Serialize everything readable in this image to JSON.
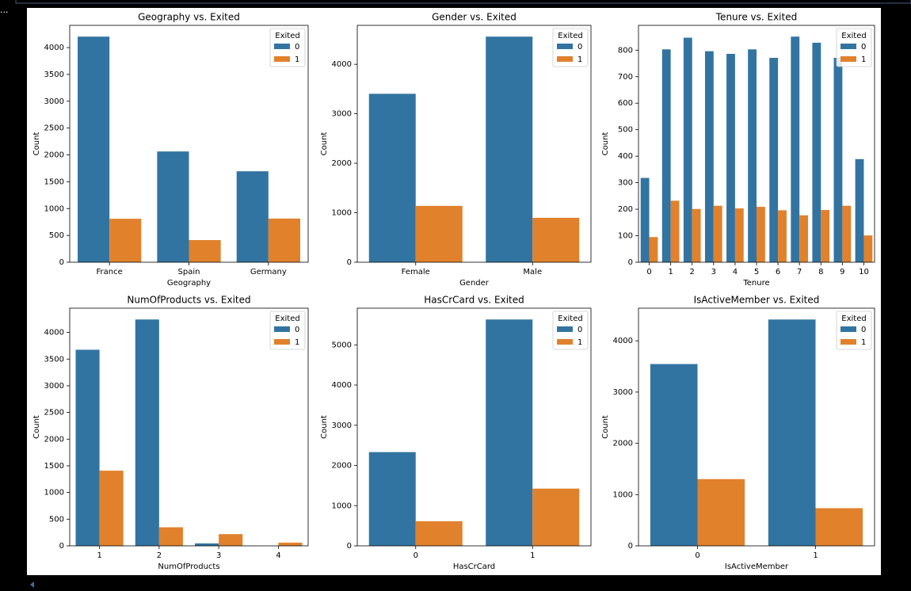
{
  "toolbar": {
    "ellipsis": "..."
  },
  "chart_data": [
    {
      "type": "bar",
      "title": "Geography vs. Exited",
      "xlabel": "Geography",
      "ylabel": "Count",
      "legend_title": "Exited",
      "legend": "upper right",
      "categories": [
        "France",
        "Spain",
        "Germany"
      ],
      "series": [
        {
          "name": "0",
          "color": "#3274a1",
          "values": [
            4204,
            2064,
            1695
          ]
        },
        {
          "name": "1",
          "color": "#e1812c",
          "values": [
            810,
            413,
            814
          ]
        }
      ],
      "ylim": [
        0,
        4414
      ],
      "yticks": [
        0,
        500,
        1000,
        1500,
        2000,
        2500,
        3000,
        3500,
        4000
      ]
    },
    {
      "type": "bar",
      "title": "Gender vs. Exited",
      "xlabel": "Gender",
      "ylabel": "Count",
      "legend_title": "Exited",
      "legend": "upper right",
      "categories": [
        "Female",
        "Male"
      ],
      "series": [
        {
          "name": "0",
          "color": "#3274a1",
          "values": [
            3404,
            4559
          ]
        },
        {
          "name": "1",
          "color": "#e1812c",
          "values": [
            1139,
            898
          ]
        }
      ],
      "ylim": [
        0,
        4787
      ],
      "yticks": [
        0,
        1000,
        2000,
        3000,
        4000
      ]
    },
    {
      "type": "bar",
      "title": "Tenure vs. Exited",
      "xlabel": "Tenure",
      "ylabel": "Count",
      "legend_title": "Exited",
      "legend": "upper right",
      "categories": [
        "0",
        "1",
        "2",
        "3",
        "4",
        "5",
        "6",
        "7",
        "8",
        "9",
        "10"
      ],
      "series": [
        {
          "name": "0",
          "color": "#3274a1",
          "values": [
            318,
            803,
            847,
            796,
            786,
            803,
            771,
            851,
            828,
            771,
            389
          ]
        },
        {
          "name": "1",
          "color": "#e1812c",
          "values": [
            95,
            232,
            201,
            213,
            203,
            209,
            196,
            177,
            197,
            213,
            101
          ]
        }
      ],
      "ylim": [
        0,
        893.55
      ],
      "yticks": [
        0,
        100,
        200,
        300,
        400,
        500,
        600,
        700,
        800
      ]
    },
    {
      "type": "bar",
      "title": "NumOfProducts vs. Exited",
      "xlabel": "NumOfProducts",
      "ylabel": "Count",
      "legend_title": "Exited",
      "legend": "upper right",
      "categories": [
        "1",
        "2",
        "3",
        "4"
      ],
      "series": [
        {
          "name": "0",
          "color": "#3274a1",
          "values": [
            3675,
            4242,
            46,
            0
          ]
        },
        {
          "name": "1",
          "color": "#e1812c",
          "values": [
            1409,
            348,
            220,
            60
          ]
        }
      ],
      "ylim": [
        0,
        4454
      ],
      "yticks": [
        0,
        500,
        1000,
        1500,
        2000,
        2500,
        3000,
        3500,
        4000
      ]
    },
    {
      "type": "bar",
      "title": "HasCrCard vs. Exited",
      "xlabel": "HasCrCard",
      "ylabel": "Count",
      "legend_title": "Exited",
      "legend": "upper right",
      "categories": [
        "0",
        "1"
      ],
      "series": [
        {
          "name": "0",
          "color": "#3274a1",
          "values": [
            2332,
            5631
          ]
        },
        {
          "name": "1",
          "color": "#e1812c",
          "values": [
            613,
            1424
          ]
        }
      ],
      "ylim": [
        0,
        5912
      ],
      "yticks": [
        0,
        1000,
        2000,
        3000,
        4000,
        5000
      ]
    },
    {
      "type": "bar",
      "title": "IsActiveMember vs. Exited",
      "xlabel": "IsActiveMember",
      "ylabel": "Count",
      "legend_title": "Exited",
      "legend": "upper right",
      "categories": [
        "0",
        "1"
      ],
      "series": [
        {
          "name": "0",
          "color": "#3274a1",
          "values": [
            3547,
            4416
          ]
        },
        {
          "name": "1",
          "color": "#e1812c",
          "values": [
            1302,
            735
          ]
        }
      ],
      "ylim": [
        0,
        4637
      ],
      "yticks": [
        0,
        1000,
        2000,
        3000,
        4000
      ]
    }
  ]
}
